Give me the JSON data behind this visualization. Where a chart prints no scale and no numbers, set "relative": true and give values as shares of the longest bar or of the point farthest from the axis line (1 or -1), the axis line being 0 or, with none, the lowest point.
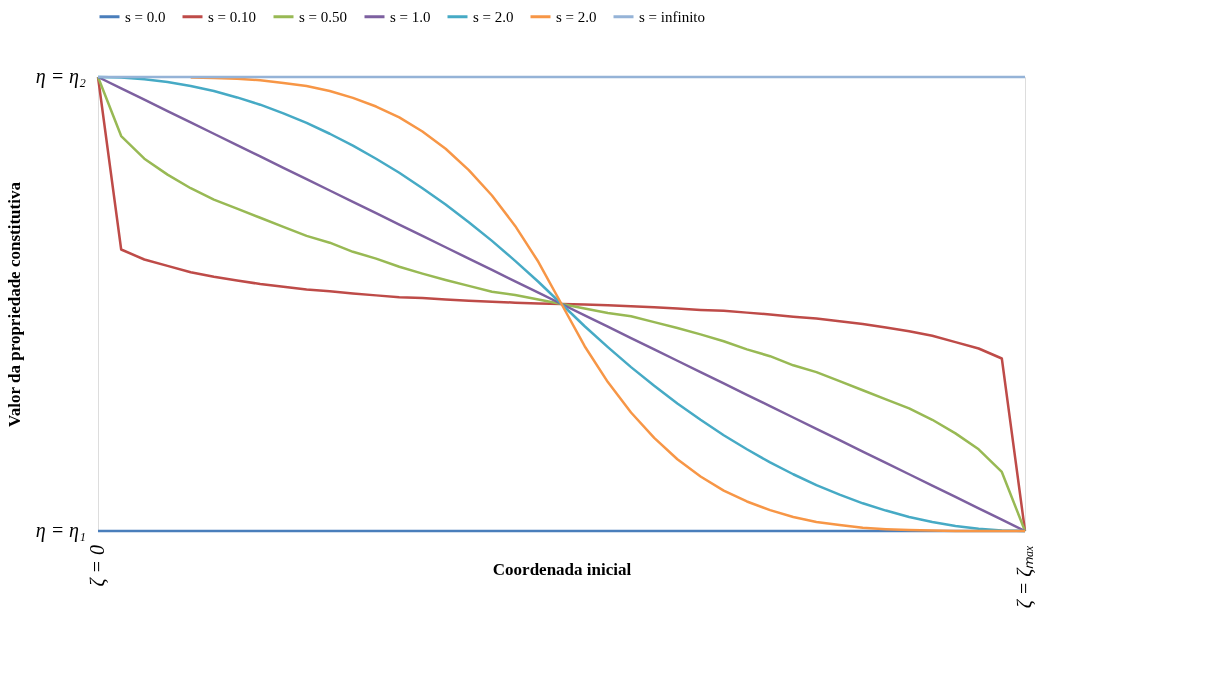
{
  "chart_data": {
    "type": "line",
    "xlabel": "Coordenada inicial",
    "ylabel": "Valor da propriedade constitutiva",
    "relative": true,
    "categories": [
      null,
      null,
      null,
      null,
      null,
      null,
      null,
      null,
      null,
      null,
      null,
      null,
      null,
      null,
      null,
      null,
      null,
      null,
      null,
      null,
      null,
      null,
      null,
      null,
      null,
      null,
      null,
      null,
      null,
      null,
      null,
      null,
      null,
      null,
      null,
      null,
      null,
      null,
      null,
      null,
      null
    ],
    "annotations": [
      "η = η₂",
      "η = η₁",
      "ζ = 0",
      "ζ = ζₘₐₓ"
    ],
    "grid": false,
    "legend": "top",
    "marker": "none",
    "line_style": "solid",
    "series": [
      {
        "name": "s = 0.0",
        "color": "#4a7ebb",
        "values": [
          0,
          0,
          0,
          0,
          0,
          0,
          0,
          0,
          0,
          0,
          0,
          0,
          0,
          0,
          0,
          0,
          0,
          0,
          0,
          0,
          0,
          0,
          0,
          0,
          0,
          0,
          0,
          0,
          0,
          0,
          0,
          0,
          0,
          0,
          0,
          0,
          0,
          0,
          0,
          0,
          0
        ]
      },
      {
        "name": "s = 0.10",
        "color": "#be4b48",
        "values": [
          1,
          0.62,
          0.598,
          0.584,
          0.57,
          0.56,
          0.552,
          0.544,
          0.538,
          0.532,
          0.528,
          0.523,
          0.519,
          0.515,
          0.513,
          0.51,
          0.507,
          0.505,
          0.503,
          0.501,
          0.5,
          0.499,
          0.497,
          0.495,
          0.493,
          0.49,
          0.487,
          0.485,
          0.481,
          0.477,
          0.472,
          0.468,
          0.462,
          0.456,
          0.448,
          0.44,
          0.43,
          0.416,
          0.402,
          0.38,
          0
        ]
      },
      {
        "name": "s = 0.50",
        "color": "#98b954",
        "values": [
          1,
          0.87,
          0.82,
          0.785,
          0.755,
          0.73,
          0.71,
          0.69,
          0.67,
          0.65,
          0.635,
          0.615,
          0.6,
          0.582,
          0.567,
          0.553,
          0.54,
          0.527,
          0.52,
          0.51,
          0.5,
          0.49,
          0.48,
          0.473,
          0.46,
          0.447,
          0.433,
          0.418,
          0.4,
          0.385,
          0.365,
          0.35,
          0.33,
          0.31,
          0.29,
          0.27,
          0.245,
          0.215,
          0.18,
          0.13,
          0
        ]
      },
      {
        "name": "s = 1.0",
        "color": "#7d60a0",
        "values": [
          1,
          0.975,
          0.95,
          0.925,
          0.9,
          0.875,
          0.85,
          0.825,
          0.8,
          0.775,
          0.75,
          0.725,
          0.7,
          0.675,
          0.65,
          0.625,
          0.6,
          0.575,
          0.55,
          0.525,
          0.5,
          0.475,
          0.45,
          0.425,
          0.4,
          0.375,
          0.35,
          0.325,
          0.3,
          0.275,
          0.25,
          0.225,
          0.2,
          0.175,
          0.15,
          0.125,
          0.1,
          0.075,
          0.05,
          0.025,
          0
        ]
      },
      {
        "name": "s = 2.0",
        "color": "#46aac5",
        "values": [
          1,
          0.999,
          0.995,
          0.989,
          0.98,
          0.969,
          0.955,
          0.939,
          0.92,
          0.899,
          0.875,
          0.849,
          0.82,
          0.789,
          0.755,
          0.719,
          0.68,
          0.639,
          0.595,
          0.549,
          0.5,
          0.451,
          0.405,
          0.361,
          0.32,
          0.281,
          0.245,
          0.211,
          0.18,
          0.151,
          0.125,
          0.101,
          0.08,
          0.061,
          0.045,
          0.031,
          0.02,
          0.011,
          0.005,
          0.001,
          0
        ]
      },
      {
        "name": "s = 2.0",
        "color": "#f79646",
        "values": [
          null,
          null,
          null,
          null,
          0.999,
          0.998,
          0.996,
          0.993,
          0.987,
          0.98,
          0.969,
          0.954,
          0.935,
          0.911,
          0.88,
          0.842,
          0.795,
          0.739,
          0.672,
          0.593,
          0.5,
          0.407,
          0.328,
          0.261,
          0.205,
          0.158,
          0.12,
          0.089,
          0.065,
          0.046,
          0.031,
          0.02,
          0.013,
          0.007,
          0.004,
          0.002,
          0.001,
          0,
          0,
          0,
          0
        ]
      },
      {
        "name": "s = infinito",
        "color": "#95b3d7",
        "values": [
          1,
          1,
          1,
          1,
          1,
          1,
          1,
          1,
          1,
          1,
          1,
          1,
          1,
          1,
          1,
          1,
          1,
          1,
          1,
          1,
          1,
          1,
          1,
          1,
          1,
          1,
          1,
          1,
          1,
          1,
          1,
          1,
          1,
          1,
          1,
          1,
          1,
          1,
          1,
          1,
          1
        ]
      }
    ]
  }
}
